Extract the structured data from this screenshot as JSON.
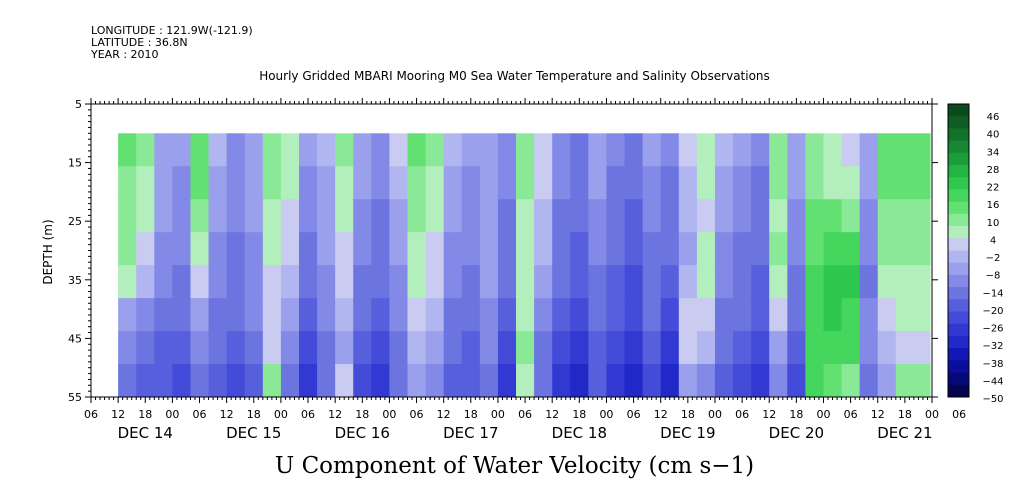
{
  "header": {
    "longitude": "LONGITUDE : 121.9W(-121.9)",
    "latitude": "LATITUDE : 36.8N",
    "year": "YEAR : 2010"
  },
  "chart_data": {
    "type": "heatmap",
    "title": "Hourly Gridded MBARI Mooring M0 Sea Water Temperature and Salinity Observations",
    "xlabel": "U Component of Water Velocity (cm s−1)",
    "ylabel": "DEPTH (m)",
    "y_ticks": [
      "5",
      "15",
      "25",
      "35",
      "45",
      "55"
    ],
    "y_range": [
      5,
      55
    ],
    "y_reversed": true,
    "data_depth_range": [
      10,
      55
    ],
    "x_hour_ticks": [
      "06",
      "12",
      "18",
      "00",
      "06",
      "12",
      "18",
      "00",
      "06",
      "12",
      "18",
      "00",
      "06",
      "12",
      "18",
      "00",
      "06",
      "12",
      "18",
      "00",
      "06",
      "12",
      "18",
      "00",
      "06",
      "12",
      "18",
      "00",
      "06",
      "12",
      "18",
      "00",
      "06"
    ],
    "x_day_labels": [
      "DEC 14",
      "DEC 15",
      "DEC 16",
      "DEC 17",
      "DEC 18",
      "DEC 19",
      "DEC 20",
      "DEC 21"
    ],
    "x_range_hours": [
      0,
      186
    ],
    "data_start_hour": 6,
    "colorbar": {
      "labels": [
        "46",
        "40",
        "34",
        "28",
        "22",
        "16",
        "10",
        "4",
        "−2",
        "−8",
        "−14",
        "−20",
        "−26",
        "−32",
        "−38",
        "−44",
        "−50"
      ],
      "colors": [
        "#0b4a1e",
        "#0f5d24",
        "#12722b",
        "#168833",
        "#1a9e3b",
        "#22b543",
        "#2fc84e",
        "#44d65d",
        "#62e071",
        "#8ae996",
        "#b3efbd",
        "#c9ccf0",
        "#b2b6f0",
        "#9aa0ec",
        "#8289e6",
        "#6c74e0",
        "#575fdc",
        "#434bd8",
        "#3139d2",
        "#2028c8",
        "#1218b6",
        "#0a0e9a",
        "#050876",
        "#030550"
      ]
    },
    "columns": [
      {
        "hour": 6,
        "values": [
          14,
          13,
          12,
          10,
          6,
          -4,
          -10,
          -14
        ]
      },
      {
        "hour": 10,
        "values": [
          10,
          8,
          6,
          4,
          -2,
          -8,
          -14,
          -18
        ]
      },
      {
        "hour": 14,
        "values": [
          -4,
          -6,
          -6,
          -8,
          -10,
          -12,
          -18,
          -20
        ]
      },
      {
        "hour": 18,
        "values": [
          -6,
          -8,
          -8,
          -10,
          -12,
          -14,
          -18,
          -22
        ]
      },
      {
        "hour": 22,
        "values": [
          16,
          14,
          12,
          8,
          2,
          -4,
          -10,
          -14
        ]
      },
      {
        "hour": 26,
        "values": [
          -2,
          -4,
          -6,
          -8,
          -10,
          -14,
          -16,
          -20
        ]
      },
      {
        "hour": 30,
        "values": [
          -8,
          -10,
          -10,
          -12,
          -14,
          -16,
          -20,
          -24
        ]
      },
      {
        "hour": 34,
        "values": [
          -4,
          -4,
          -6,
          -8,
          -8,
          -10,
          -14,
          -18
        ]
      },
      {
        "hour": 38,
        "values": [
          12,
          10,
          8,
          6,
          4,
          2,
          4,
          10
        ]
      },
      {
        "hour": 42,
        "values": [
          8,
          6,
          4,
          2,
          -2,
          -6,
          -10,
          -14
        ]
      },
      {
        "hour": 46,
        "values": [
          -6,
          -8,
          -10,
          -12,
          -16,
          -18,
          -22,
          -26
        ]
      },
      {
        "hour": 50,
        "values": [
          -2,
          -4,
          -4,
          -6,
          -8,
          -10,
          -14,
          -16
        ]
      },
      {
        "hour": 54,
        "values": [
          10,
          8,
          6,
          4,
          2,
          -2,
          -6,
          4
        ]
      },
      {
        "hour": 58,
        "values": [
          -4,
          -6,
          -8,
          -10,
          -12,
          -14,
          -18,
          -22
        ]
      },
      {
        "hour": 62,
        "values": [
          -8,
          -10,
          -12,
          -14,
          -16,
          -18,
          -22,
          -26
        ]
      },
      {
        "hour": 66,
        "values": [
          2,
          -2,
          -4,
          -6,
          -8,
          -10,
          -14,
          -16
        ]
      },
      {
        "hour": 70,
        "values": [
          14,
          12,
          10,
          8,
          6,
          4,
          0,
          -4
        ]
      },
      {
        "hour": 74,
        "values": [
          10,
          8,
          6,
          4,
          2,
          -2,
          -6,
          -10
        ]
      },
      {
        "hour": 78,
        "values": [
          -2,
          -4,
          -6,
          -8,
          -10,
          -12,
          -16,
          -18
        ]
      },
      {
        "hour": 82,
        "values": [
          -6,
          -8,
          -10,
          -10,
          -12,
          -14,
          -18,
          -20
        ]
      },
      {
        "hour": 86,
        "values": [
          -4,
          -6,
          -4,
          -4,
          -6,
          -8,
          -10,
          -14
        ]
      },
      {
        "hour": 90,
        "values": [
          -8,
          -10,
          -12,
          -14,
          -16,
          -18,
          -22,
          -26
        ]
      },
      {
        "hour": 94,
        "values": [
          12,
          10,
          8,
          6,
          6,
          8,
          10,
          6
        ]
      },
      {
        "hour": 98,
        "values": [
          4,
          2,
          0,
          -2,
          -4,
          -8,
          -12,
          -16
        ]
      },
      {
        "hour": 102,
        "values": [
          -8,
          -10,
          -12,
          -14,
          -16,
          -20,
          -24,
          -28
        ]
      },
      {
        "hour": 106,
        "values": [
          -12,
          -14,
          -16,
          -18,
          -20,
          -22,
          -26,
          -30
        ]
      },
      {
        "hour": 110,
        "values": [
          -4,
          -6,
          -8,
          -10,
          -12,
          -14,
          -18,
          -20
        ]
      },
      {
        "hour": 114,
        "values": [
          -10,
          -12,
          -14,
          -16,
          -18,
          -20,
          -24,
          -28
        ]
      },
      {
        "hour": 118,
        "values": [
          -14,
          -16,
          -18,
          -20,
          -22,
          -24,
          -28,
          -32
        ]
      },
      {
        "hour": 122,
        "values": [
          -6,
          -8,
          -10,
          -12,
          -14,
          -16,
          -20,
          -24
        ]
      },
      {
        "hour": 126,
        "values": [
          -10,
          -12,
          -14,
          -16,
          -18,
          -22,
          -26,
          -32
        ]
      },
      {
        "hour": 130,
        "values": [
          2,
          0,
          -2,
          -4,
          -2,
          4,
          2,
          -6
        ]
      },
      {
        "hour": 134,
        "values": [
          8,
          6,
          4,
          6,
          8,
          4,
          -2,
          -8
        ]
      },
      {
        "hour": 138,
        "values": [
          -2,
          -4,
          -6,
          -8,
          -10,
          -12,
          -16,
          -20
        ]
      },
      {
        "hour": 142,
        "values": [
          -6,
          -8,
          -10,
          -12,
          -14,
          -16,
          -20,
          -24
        ]
      },
      {
        "hour": 146,
        "values": [
          -10,
          -12,
          -14,
          -16,
          -18,
          -20,
          -24,
          -28
        ]
      },
      {
        "hour": 150,
        "values": [
          12,
          10,
          8,
          10,
          6,
          2,
          -4,
          -8
        ]
      },
      {
        "hour": 154,
        "values": [
          -4,
          -6,
          -8,
          -10,
          -12,
          -14,
          -18,
          -22
        ]
      },
      {
        "hour": 158,
        "values": [
          10,
          12,
          14,
          16,
          18,
          20,
          22,
          22
        ]
      },
      {
        "hour": 162,
        "values": [
          6,
          8,
          14,
          20,
          26,
          24,
          20,
          16
        ]
      },
      {
        "hour": 166,
        "values": [
          4,
          6,
          10,
          18,
          24,
          22,
          18,
          12
        ]
      },
      {
        "hour": 170,
        "values": [
          -4,
          -6,
          -8,
          -10,
          -12,
          -8,
          -10,
          -14
        ]
      },
      {
        "hour": 174,
        "values": [
          14,
          14,
          12,
          10,
          8,
          4,
          -2,
          -6
        ]
      },
      {
        "hour": 178,
        "values": [
          16,
          14,
          12,
          10,
          8,
          6,
          4,
          10
        ]
      }
    ]
  }
}
